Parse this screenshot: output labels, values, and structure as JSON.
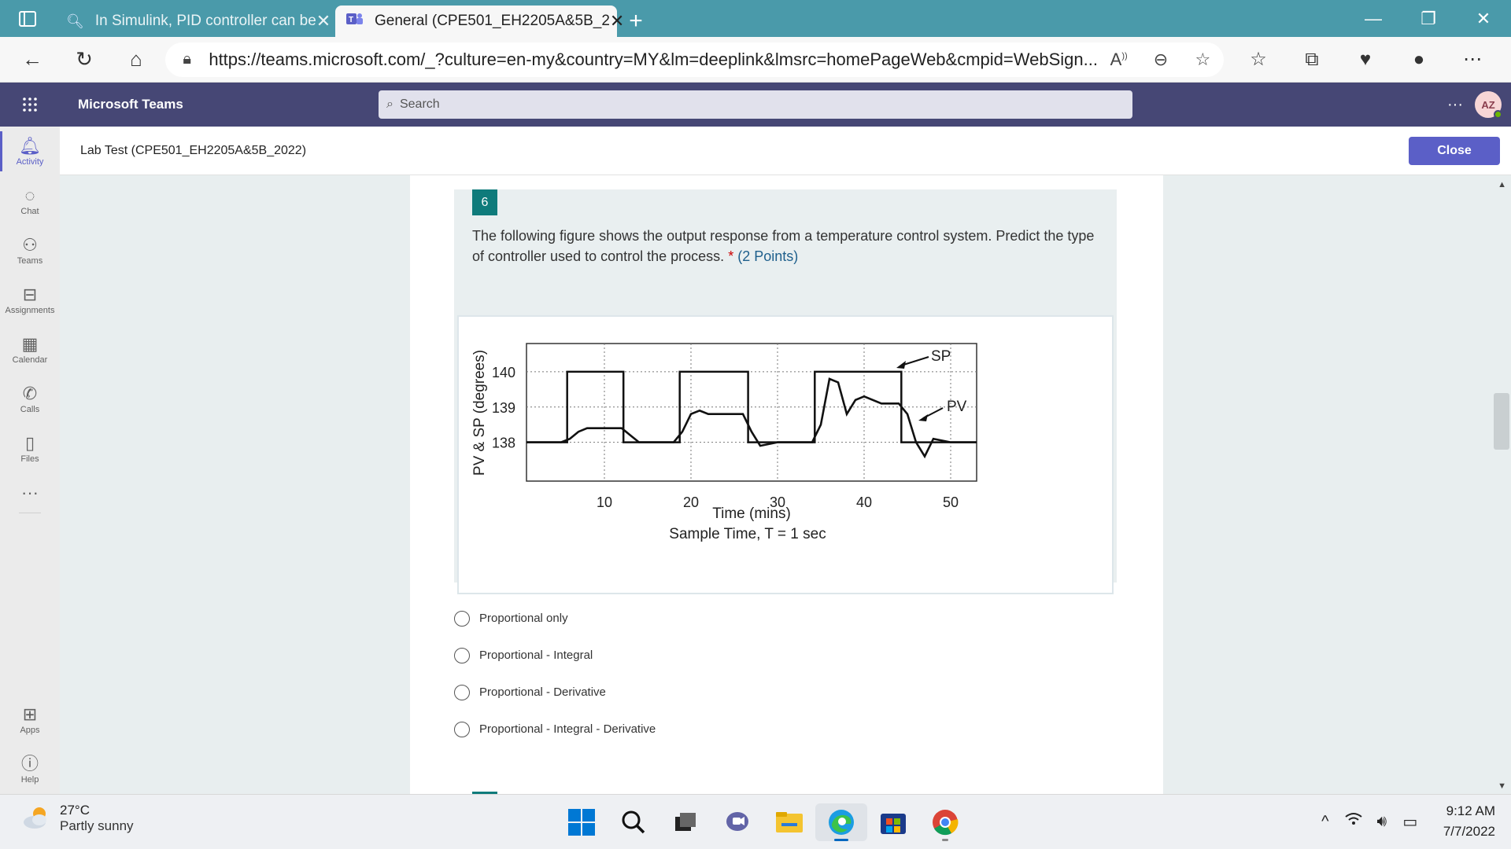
{
  "browser": {
    "tabs": [
      {
        "title": "In Simulink, PID controller can be",
        "active": false
      },
      {
        "title": "General (CPE501_EH2205A&5B_2",
        "active": true
      }
    ],
    "url": "https://teams.microsoft.com/_?culture=en-my&country=MY&lm=deeplink&lmsrc=homePageWeb&cmpid=WebSign..."
  },
  "teams": {
    "app_title": "Microsoft Teams",
    "search_placeholder": "Search",
    "avatar_initials": "AZ",
    "rail": [
      {
        "label": "Activity",
        "icon": "bell-icon"
      },
      {
        "label": "Chat",
        "icon": "chat-icon"
      },
      {
        "label": "Teams",
        "icon": "teams-icon"
      },
      {
        "label": "Assignments",
        "icon": "assignments-icon"
      },
      {
        "label": "Calendar",
        "icon": "calendar-icon"
      },
      {
        "label": "Calls",
        "icon": "phone-icon"
      },
      {
        "label": "Files",
        "icon": "file-icon"
      }
    ],
    "rail_bottom": [
      {
        "label": "Apps",
        "icon": "apps-icon"
      },
      {
        "label": "Help",
        "icon": "help-icon"
      }
    ]
  },
  "form": {
    "header_title": "Lab Test (CPE501_EH2205A&5B_2022)",
    "close_label": "Close",
    "question": {
      "number": "6",
      "text": "The following figure shows the output response from a temperature control system. Predict the type of controller used to control the process.",
      "required_mark": "*",
      "points": "(2 Points)",
      "options": [
        "Proportional only",
        "Proportional - Integral",
        "Proportional - Derivative",
        "Proportional - Integral - Derivative"
      ]
    }
  },
  "chart_data": {
    "type": "line",
    "ylabel": "PV & SP (degrees)",
    "xlabel": "Time (mins)",
    "caption": "Sample Time, T = 1 sec",
    "x_ticks": [
      10,
      20,
      30,
      40,
      50
    ],
    "y_ticks": [
      138,
      139,
      140
    ],
    "xlim": [
      1,
      53
    ],
    "ylim": [
      136.9,
      140.8
    ],
    "annotations": [
      "SP",
      "PV"
    ],
    "series": [
      {
        "name": "SP",
        "x": [
          1,
          5.7,
          5.7,
          12.2,
          12.2,
          18.7,
          18.7,
          26.6,
          26.6,
          34.3,
          34.3,
          44.3,
          44.3,
          53
        ],
        "y": [
          138,
          138,
          140,
          140,
          138,
          138,
          140,
          140,
          138,
          138,
          140,
          140,
          138,
          138
        ]
      },
      {
        "name": "PV",
        "x": [
          1,
          5,
          6,
          7,
          8,
          10,
          12,
          13,
          14,
          16,
          18,
          19,
          20,
          21,
          22,
          24,
          26,
          27,
          28,
          30,
          32,
          34,
          35,
          36,
          37,
          38,
          39,
          40,
          42,
          44,
          45,
          46,
          47,
          48,
          50,
          53
        ],
        "y": [
          138,
          138,
          138.1,
          138.3,
          138.4,
          138.4,
          138.4,
          138.2,
          138.0,
          138.0,
          138.0,
          138.3,
          138.8,
          138.9,
          138.8,
          138.8,
          138.8,
          138.3,
          137.9,
          138.0,
          138.0,
          138.0,
          138.5,
          139.8,
          139.7,
          138.8,
          139.2,
          139.3,
          139.1,
          139.1,
          138.8,
          138.0,
          137.6,
          138.1,
          138.0,
          138.0
        ]
      }
    ]
  },
  "taskbar": {
    "temperature": "27°C",
    "condition": "Partly sunny",
    "time": "9:12 AM",
    "date": "7/7/2022"
  }
}
